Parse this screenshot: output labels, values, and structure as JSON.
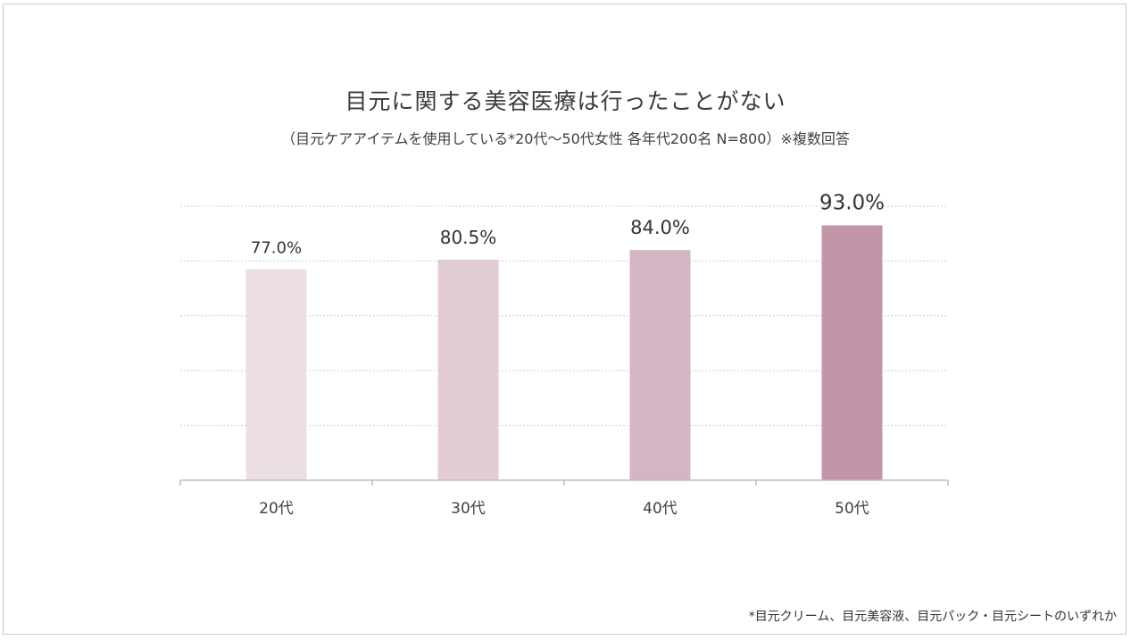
{
  "title": "目元に関する美容医療は行ったことがない",
  "subtitle": "（目元ケアアイテムを使用している*20代〜50代女性 各年代200名 N=800）※複数回答",
  "footnote": "*目元クリーム、目元美容液、目元パック・目元シートのいずれか",
  "chart_data": {
    "type": "bar",
    "categories": [
      "20代",
      "30代",
      "40代",
      "50代"
    ],
    "values": [
      77.0,
      80.5,
      84.0,
      93.0
    ],
    "data_labels": [
      "77.0%",
      "80.5%",
      "84.0%",
      "93.0%"
    ],
    "colors": [
      "#ecdfe4",
      "#e2ccd6",
      "#d5b5c4",
      "#c295a9"
    ],
    "ylim": [
      0,
      100
    ],
    "grid": true,
    "grid_style": "dotted",
    "legend": "none"
  }
}
